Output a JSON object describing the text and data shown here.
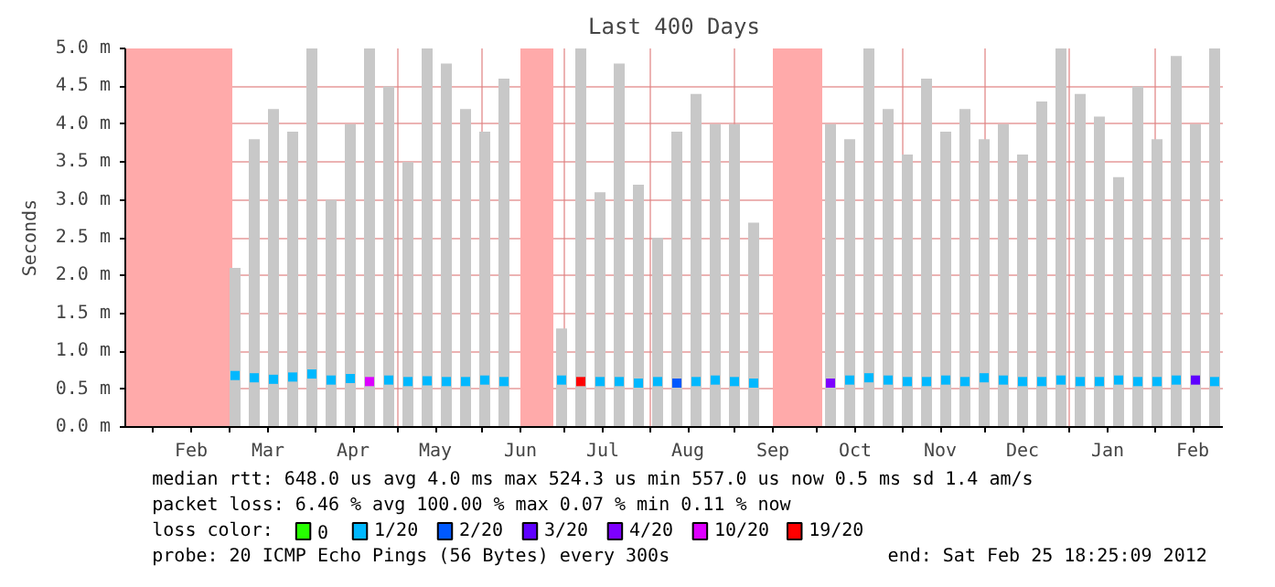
{
  "chart_data": {
    "type": "bar",
    "title": "Last 400 Days",
    "ylabel": "Seconds",
    "x": [
      "2011-03-03",
      "2011-03-10",
      "2011-03-17",
      "2011-03-24",
      "2011-03-31",
      "2011-04-07",
      "2011-04-14",
      "2011-04-21",
      "2011-04-28",
      "2011-05-05",
      "2011-05-12",
      "2011-05-19",
      "2011-05-26",
      "2011-06-02",
      "2011-06-09",
      "2011-06-16",
      "2011-06-23",
      "2011-06-30",
      "2011-07-07",
      "2011-07-14",
      "2011-07-21",
      "2011-07-28",
      "2011-08-04",
      "2011-08-11",
      "2011-08-18",
      "2011-08-25",
      "2011-09-01",
      "2011-09-08",
      "2011-09-15",
      "2011-09-22",
      "2011-09-29",
      "2011-10-06",
      "2011-10-13",
      "2011-10-20",
      "2011-10-27",
      "2011-11-03",
      "2011-11-10",
      "2011-11-17",
      "2011-11-24",
      "2011-12-01",
      "2011-12-08",
      "2011-12-15",
      "2011-12-22",
      "2011-12-29",
      "2012-01-05",
      "2012-01-12",
      "2012-01-19",
      "2012-01-26",
      "2012-02-02",
      "2012-02-09",
      "2012-02-16",
      "2012-02-23"
    ],
    "series": [
      {
        "color": "#c8c8c8",
        "values": [
          2.1,
          3.8,
          4.2,
          3.9,
          5.0,
          3.0,
          4.0,
          5.0,
          4.5,
          3.5,
          5.0,
          4.8,
          4.2,
          3.9,
          4.6,
          null,
          null,
          1.3,
          5.0,
          3.1,
          4.8,
          3.2,
          2.5,
          3.9,
          4.4,
          4.0,
          4.0,
          2.7,
          null,
          null,
          null,
          4.0,
          3.8,
          5.0,
          4.2,
          3.6,
          4.6,
          3.9,
          4.2,
          3.8,
          4.0,
          3.6,
          4.3,
          5.0,
          4.4,
          4.1,
          3.3,
          4.5,
          3.8,
          4.9,
          4.0,
          5.0
        ]
      },
      {
        "type": "scatter",
        "name": "0",
        "color": "#26ff00",
        "values": [
          null,
          null,
          null,
          null,
          null,
          null,
          null,
          null,
          null,
          null,
          null,
          null,
          null,
          null,
          null,
          null,
          null,
          null,
          null,
          null,
          null,
          null,
          null,
          null,
          null,
          null,
          null,
          null,
          null,
          null,
          null,
          null,
          null,
          null,
          null,
          null,
          null,
          null,
          null,
          null,
          null,
          null,
          null,
          null,
          null,
          null,
          null,
          null,
          null,
          null,
          null,
          null
        ]
      },
      {
        "type": "scatter",
        "name": "1/20",
        "color": "#00b8ff",
        "values": [
          0.68,
          0.65,
          0.63,
          0.66,
          0.7,
          0.62,
          0.64,
          null,
          0.62,
          0.6,
          0.61,
          0.6,
          0.6,
          0.62,
          0.6,
          null,
          null,
          0.62,
          null,
          0.6,
          0.6,
          0.58,
          0.6,
          null,
          0.6,
          0.62,
          0.6,
          0.58,
          null,
          null,
          null,
          null,
          0.62,
          0.65,
          0.62,
          0.6,
          0.6,
          0.62,
          0.6,
          0.65,
          0.62,
          0.6,
          0.6,
          0.62,
          0.6,
          0.6,
          0.62,
          0.6,
          0.6,
          0.62,
          null,
          0.6
        ]
      },
      {
        "type": "scatter",
        "name": "2/20",
        "color": "#0059ff",
        "values": [
          null,
          null,
          null,
          null,
          null,
          null,
          null,
          null,
          null,
          null,
          null,
          null,
          null,
          null,
          null,
          null,
          null,
          null,
          null,
          null,
          null,
          null,
          null,
          0.58,
          null,
          null,
          null,
          null,
          null,
          null,
          null,
          null,
          null,
          null,
          null,
          null,
          null,
          null,
          null,
          null,
          null,
          null,
          null,
          null,
          null,
          null,
          null,
          null,
          null,
          null,
          null,
          null
        ]
      },
      {
        "type": "scatter",
        "name": "3/20",
        "color": "#5e00ff",
        "values": [
          null,
          null,
          null,
          null,
          null,
          null,
          null,
          null,
          null,
          null,
          null,
          null,
          null,
          null,
          null,
          null,
          null,
          null,
          null,
          null,
          null,
          null,
          null,
          null,
          null,
          null,
          null,
          null,
          null,
          null,
          null,
          null,
          null,
          null,
          null,
          null,
          null,
          null,
          null,
          null,
          null,
          null,
          null,
          null,
          null,
          null,
          null,
          null,
          null,
          null,
          0.62,
          null
        ]
      },
      {
        "type": "scatter",
        "name": "4/20",
        "color": "#7e00ff",
        "values": [
          null,
          null,
          null,
          null,
          null,
          null,
          null,
          null,
          null,
          null,
          null,
          null,
          null,
          null,
          null,
          null,
          null,
          null,
          null,
          null,
          null,
          null,
          null,
          null,
          null,
          null,
          null,
          null,
          null,
          null,
          null,
          0.58,
          null,
          null,
          null,
          null,
          null,
          null,
          null,
          null,
          null,
          null,
          null,
          null,
          null,
          null,
          null,
          null,
          null,
          null,
          null,
          null
        ]
      },
      {
        "type": "scatter",
        "name": "10/20",
        "color": "#dd00ff",
        "values": [
          null,
          null,
          null,
          null,
          null,
          null,
          null,
          0.6,
          null,
          null,
          null,
          null,
          null,
          null,
          null,
          null,
          null,
          null,
          null,
          null,
          null,
          null,
          null,
          null,
          null,
          null,
          null,
          null,
          null,
          null,
          null,
          null,
          null,
          null,
          null,
          null,
          null,
          null,
          null,
          null,
          null,
          null,
          null,
          null,
          null,
          null,
          null,
          null,
          null,
          null,
          null,
          null
        ]
      },
      {
        "type": "scatter",
        "name": "19/20",
        "color": "#ff0000",
        "values": [
          null,
          null,
          null,
          null,
          null,
          null,
          null,
          null,
          null,
          null,
          null,
          null,
          null,
          null,
          null,
          null,
          null,
          null,
          0.6,
          null,
          null,
          null,
          null,
          null,
          null,
          null,
          null,
          null,
          null,
          null,
          null,
          null,
          null,
          null,
          null,
          null,
          null,
          null,
          null,
          null,
          null,
          null,
          null,
          null,
          null,
          null,
          null,
          null,
          null,
          null,
          null,
          null
        ]
      }
    ],
    "bands": [
      {
        "axis": "x",
        "from": "2011-01-22",
        "to": "2011-03-02",
        "color": "#ffaaaa"
      },
      {
        "axis": "x",
        "from": "2011-06-15",
        "to": "2011-06-27",
        "color": "#ffaaaa"
      },
      {
        "axis": "x",
        "from": "2011-09-15",
        "to": "2011-10-03",
        "color": "#ffaaaa"
      }
    ],
    "xlim": [
      "2011-01-22",
      "2012-02-26"
    ],
    "xticks": [
      {
        "value": "2011-02-01",
        "label": null
      },
      {
        "value": "2011-02-15",
        "label": "Feb"
      },
      {
        "value": "2011-03-01",
        "label": null
      },
      {
        "value": "2011-03-15",
        "label": "Mar"
      },
      {
        "value": "2011-04-01",
        "label": null
      },
      {
        "value": "2011-04-15",
        "label": "Apr"
      },
      {
        "value": "2011-05-01",
        "label": null
      },
      {
        "value": "2011-05-15",
        "label": "May"
      },
      {
        "value": "2011-06-01",
        "label": null
      },
      {
        "value": "2011-06-15",
        "label": "Jun"
      },
      {
        "value": "2011-07-01",
        "label": null
      },
      {
        "value": "2011-07-15",
        "label": "Jul"
      },
      {
        "value": "2011-08-01",
        "label": null
      },
      {
        "value": "2011-08-15",
        "label": "Aug"
      },
      {
        "value": "2011-09-01",
        "label": null
      },
      {
        "value": "2011-09-15",
        "label": "Sep"
      },
      {
        "value": "2011-10-01",
        "label": null
      },
      {
        "value": "2011-10-15",
        "label": "Oct"
      },
      {
        "value": "2011-11-01",
        "label": null
      },
      {
        "value": "2011-11-15",
        "label": "Nov"
      },
      {
        "value": "2011-12-01",
        "label": null
      },
      {
        "value": "2011-12-15",
        "label": "Dec"
      },
      {
        "value": "2012-01-01",
        "label": null
      },
      {
        "value": "2012-01-15",
        "label": "Jan"
      },
      {
        "value": "2012-02-01",
        "label": null
      },
      {
        "value": "2012-02-15",
        "label": "Feb"
      }
    ],
    "ylim": [
      0,
      5.0
    ],
    "yticks": [
      {
        "value": 0,
        "label": "0.0 m"
      },
      {
        "value": 0.5,
        "label": "0.5 m"
      },
      {
        "value": 1.0,
        "label": "1.0 m"
      },
      {
        "value": 1.5,
        "label": "1.5 m"
      },
      {
        "value": 2.0,
        "label": "2.0 m"
      },
      {
        "value": 2.5,
        "label": "2.5 m"
      },
      {
        "value": 3.0,
        "label": "3.0 m"
      },
      {
        "value": 3.5,
        "label": "3.5 m"
      },
      {
        "value": 4.0,
        "label": "4.0 m"
      },
      {
        "value": 4.5,
        "label": "4.5 m"
      },
      {
        "value": 5.0,
        "label": "5.0 m"
      }
    ],
    "grid": true,
    "marker": "square",
    "legend": "bottom",
    "legend_title": "loss color:",
    "annotations": [
      "median rtt:  648.0 us avg  4.0 ms max  524.3 us min  557.0 us now  0.5 ms sd  1.4   am/s",
      "packet loss: 6.46 % avg  100.00 % max  0.07 % min  0.11 % now",
      "probe:       20 ICMP Echo Pings (56 Bytes) every 300s",
      "end: Sat Feb 25 18:25:09 2012"
    ]
  }
}
